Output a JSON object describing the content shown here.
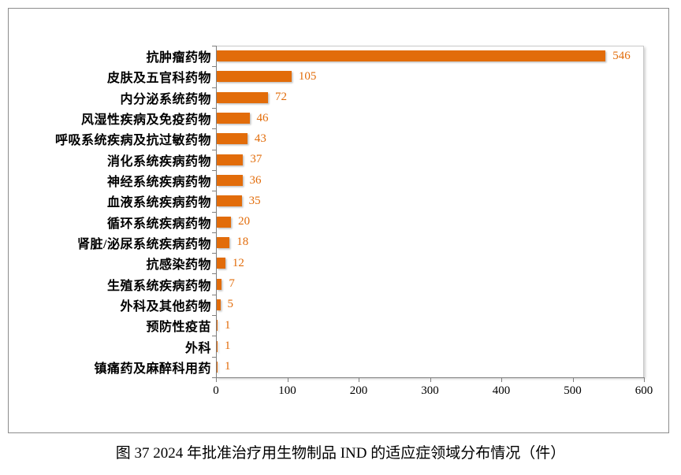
{
  "figure": {
    "caption": "图 37   2024 年批准治疗用生物制品 IND 的适应症领域分布情况（件）"
  },
  "chart_data": {
    "type": "bar",
    "orientation": "horizontal",
    "title": "",
    "xlabel": "",
    "ylabel": "",
    "categories": [
      "抗肿瘤药物",
      "皮肤及五官科药物",
      "内分泌系统药物",
      "风湿性疾病及免疫药物",
      "呼吸系统疾病及抗过敏药物",
      "消化系统疾病药物",
      "神经系统疾病药物",
      "血液系统疾病药物",
      "循环系统疾病药物",
      "肾脏/泌尿系统疾病药物",
      "抗感染药物",
      "生殖系统疾病药物",
      "外科及其他药物",
      "预防性疫苗",
      "外科",
      "镇痛药及麻醉科用药"
    ],
    "values": [
      546,
      105,
      72,
      46,
      43,
      37,
      36,
      35,
      20,
      18,
      12,
      7,
      5,
      1,
      1,
      1
    ],
    "xlim": [
      0,
      600
    ],
    "xticks": [
      0,
      100,
      200,
      300,
      400,
      500,
      600
    ],
    "grid": false,
    "legend": null,
    "bar_color": "#E26C0A",
    "value_label_color": "#E26C0A",
    "axis_color": "#7f7f7f"
  }
}
